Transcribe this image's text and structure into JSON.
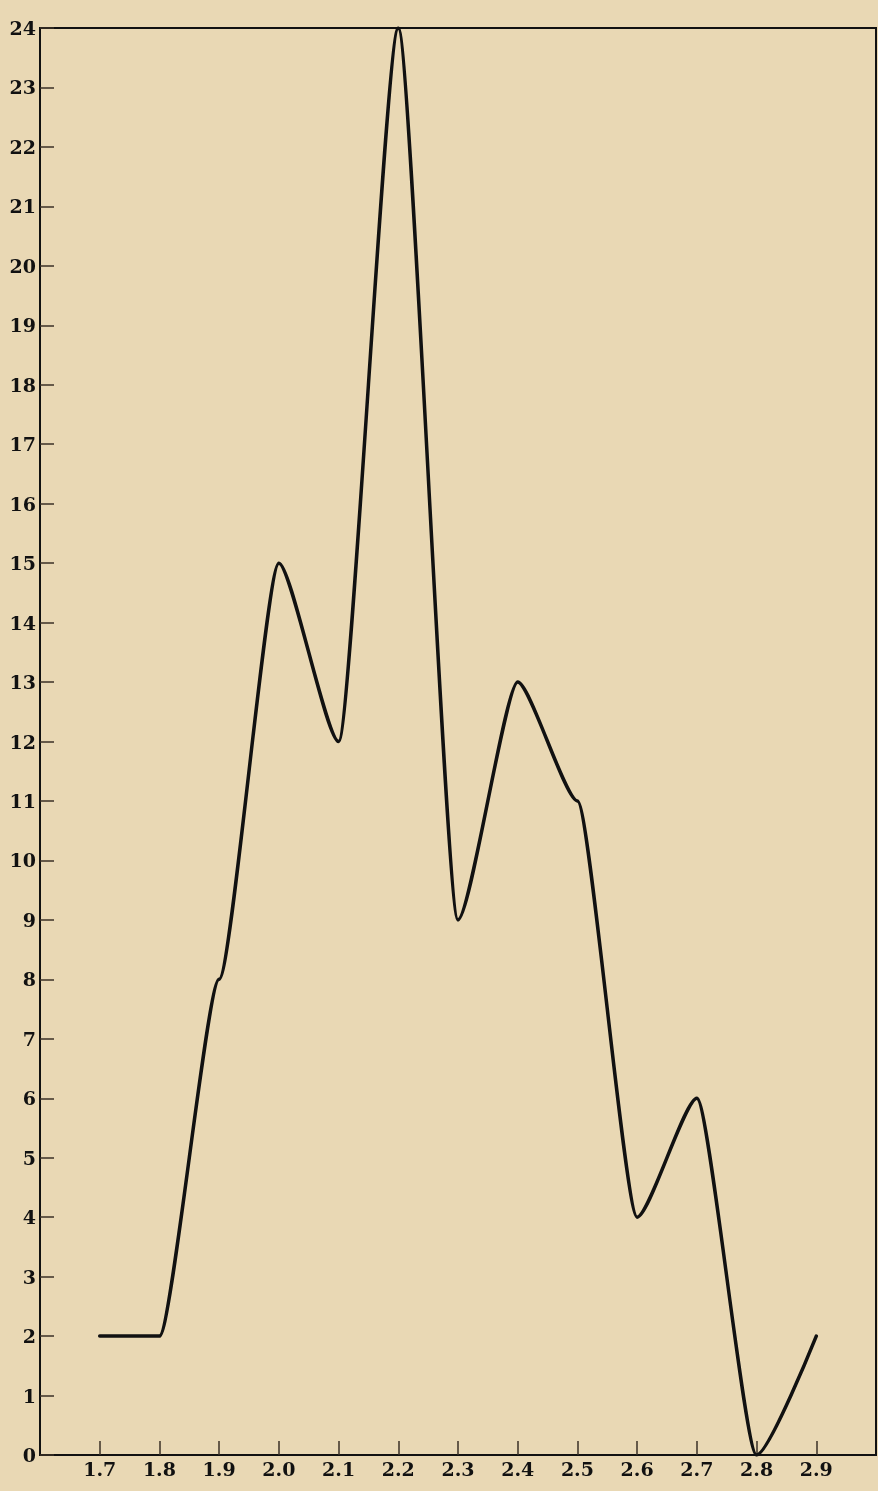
{
  "chart_data": {
    "type": "line",
    "x": [
      1.7,
      1.8,
      1.9,
      2.0,
      2.1,
      2.2,
      2.3,
      2.4,
      2.5,
      2.6,
      2.7,
      2.8,
      2.9
    ],
    "series": [
      {
        "color": "#111111",
        "values": [
          2,
          2,
          8,
          15,
          12,
          24,
          9,
          13,
          11,
          4,
          6,
          0,
          2
        ]
      }
    ],
    "xlim": [
      1.6,
      3.0
    ],
    "xticks": [
      1.7,
      1.8,
      1.9,
      {
        "value": 2.0,
        "label": "2.0"
      },
      2.1,
      2.2,
      2.3,
      2.4,
      2.5,
      2.6,
      2.7,
      2.8,
      2.9
    ],
    "ylim": [
      0,
      24
    ],
    "yticks": [
      0,
      1,
      2,
      3,
      4,
      5,
      6,
      7,
      8,
      9,
      10,
      11,
      12,
      13,
      14,
      15,
      16,
      17,
      18,
      19,
      20,
      21,
      22,
      23,
      24
    ],
    "grid": false,
    "marker": "none",
    "line_style": "solid"
  }
}
